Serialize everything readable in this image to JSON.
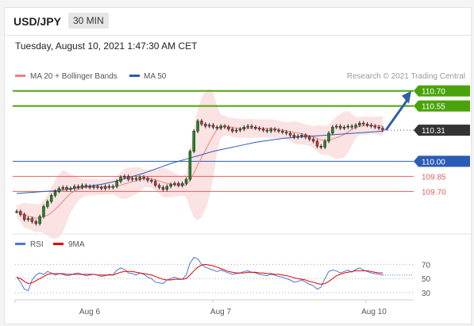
{
  "header": {
    "symbol": "USD/JPY",
    "timeframe": "30 MIN"
  },
  "timestamp": "Tuesday, August 10, 2021 1:47:30 AM CET",
  "colors": {
    "bb_band": "#f6c0c0",
    "ma20": "#f08080",
    "ma50": "#2b5bb5",
    "resistance": "#4aa30a",
    "support_red": "#e06060",
    "support_blue": "#2b5bb5",
    "arrow": "#2f5fa6",
    "up": "#1e8a1e",
    "down": "#d03030",
    "rsi": "#4a78d0",
    "rsi_ma": "#e00000"
  },
  "legend": {
    "ma20": "MA 20 + Bollinger Bands",
    "ma50": "MA 50",
    "rsi": "RSI",
    "rsi_ma": "9MA"
  },
  "credit": "Research © 2021 Trading Central",
  "levels": [
    {
      "value": 110.7,
      "label": "110.70",
      "kind": "resistance"
    },
    {
      "value": 110.55,
      "label": "110.55",
      "kind": "resistance"
    },
    {
      "value": 110.31,
      "label": "110.31",
      "kind": "current"
    },
    {
      "value": 110.0,
      "label": "110.00",
      "kind": "pivot"
    },
    {
      "value": 109.85,
      "label": "109.85",
      "kind": "support"
    },
    {
      "value": 109.7,
      "label": "109.70",
      "kind": "support"
    }
  ],
  "chart_data": {
    "type": "line",
    "price_series": [
      109.5,
      109.47,
      109.42,
      109.43,
      109.4,
      109.38,
      109.45,
      109.55,
      109.6,
      109.66,
      109.7,
      109.73,
      109.74,
      109.72,
      109.73,
      109.75,
      109.74,
      109.76,
      109.75,
      109.74,
      109.75,
      109.74,
      109.73,
      109.75,
      109.74,
      109.75,
      109.8,
      109.84,
      109.85,
      109.82,
      109.83,
      109.82,
      109.84,
      109.83,
      109.81,
      109.8,
      109.76,
      109.74,
      109.72,
      109.75,
      109.77,
      109.78,
      109.76,
      109.78,
      109.82,
      110.1,
      110.3,
      110.4,
      110.37,
      110.35,
      110.36,
      110.34,
      110.33,
      110.35,
      110.34,
      110.32,
      110.3,
      110.31,
      110.32,
      110.34,
      110.35,
      110.34,
      110.33,
      110.32,
      110.31,
      110.3,
      110.32,
      110.31,
      110.3,
      110.29,
      110.28,
      110.26,
      110.24,
      110.25,
      110.26,
      110.24,
      110.22,
      110.2,
      110.15,
      110.14,
      110.2,
      110.28,
      110.34,
      110.35,
      110.33,
      110.34,
      110.35,
      110.34,
      110.36,
      110.38,
      110.37,
      110.36,
      110.35,
      110.34,
      110.33,
      110.31
    ],
    "ma50_series": [
      109.68,
      109.69,
      109.7,
      109.71,
      109.73,
      109.75,
      109.77,
      109.8,
      109.84,
      109.88,
      109.93,
      109.98,
      110.02,
      110.06,
      110.1,
      110.13,
      110.16,
      110.19,
      110.21,
      110.23,
      110.24,
      110.25,
      110.26,
      110.27,
      110.28,
      110.29,
      110.3
    ],
    "rsi_series": [
      52,
      45,
      35,
      33,
      48,
      55,
      58,
      56,
      60,
      58,
      55,
      57,
      56,
      54,
      55,
      57,
      58,
      56,
      54,
      55,
      56,
      55,
      53,
      54,
      56,
      55,
      62,
      65,
      63,
      58,
      57,
      55,
      58,
      56,
      52,
      50,
      45,
      44,
      43,
      48,
      50,
      52,
      50,
      49,
      55,
      72,
      80,
      78,
      70,
      66,
      64,
      62,
      60,
      62,
      60,
      58,
      56,
      57,
      58,
      60,
      61,
      59,
      58,
      56,
      55,
      54,
      56,
      55,
      53,
      52,
      50,
      48,
      45,
      46,
      48,
      45,
      42,
      40,
      35,
      38,
      50,
      60,
      62,
      61,
      58,
      60,
      62,
      59,
      63,
      65,
      62,
      60,
      58,
      57,
      56,
      55
    ],
    "rsi_ma_series": [
      52,
      50,
      46,
      43,
      44,
      47,
      50,
      53,
      56,
      57,
      57,
      57,
      57,
      56,
      56,
      56,
      56,
      56,
      56,
      56,
      56,
      55,
      55,
      55,
      55,
      55,
      57,
      59,
      60,
      60,
      60,
      59,
      58,
      57,
      56,
      55,
      53,
      51,
      49,
      48,
      48,
      49,
      49,
      49,
      50,
      55,
      61,
      66,
      69,
      70,
      69,
      68,
      66,
      64,
      62,
      60,
      59,
      58,
      58,
      58,
      59,
      59,
      59,
      58,
      58,
      57,
      57,
      56,
      56,
      55,
      54,
      53,
      51,
      50,
      49,
      48,
      46,
      45,
      43,
      42,
      43,
      46,
      50,
      54,
      56,
      58,
      59,
      60,
      61,
      61,
      61,
      61,
      60,
      59,
      58,
      58
    ],
    "projection": {
      "from": 110.31,
      "to": 110.7
    },
    "price_ylim": [
      109.3,
      110.8
    ],
    "rsi_ylim": [
      20,
      85
    ],
    "rsi_levels": [
      {
        "value": 70,
        "label": "70"
      },
      {
        "value": 50,
        "label": "50"
      },
      {
        "value": 30,
        "label": "30"
      }
    ],
    "x_labels": [
      "Aug 6",
      "Aug 7",
      "Aug 10"
    ]
  }
}
